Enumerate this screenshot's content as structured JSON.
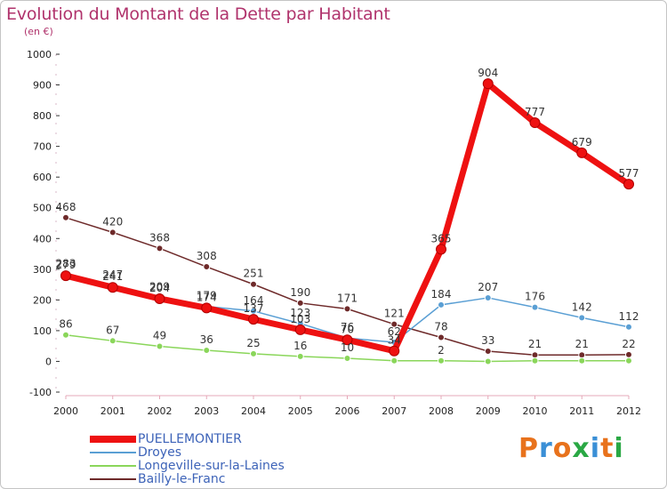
{
  "title": "Evolution du Montant de la Dette par Habitant",
  "subtitle": "(en €)",
  "logo": {
    "text": "Proxiti",
    "colors": [
      "#e8721c",
      "#3a8fd6",
      "#e8721c",
      "#2aa844",
      "#3a8fd6",
      "#e8721c",
      "#2aa844"
    ]
  },
  "chart_data": {
    "type": "line",
    "title": "Evolution du Montant de la Dette par Habitant",
    "subtitle": "(en €)",
    "x": [
      "2000",
      "2001",
      "2002",
      "2003",
      "2004",
      "2005",
      "2006",
      "2007",
      "2008",
      "2009",
      "2010",
      "2011",
      "2012"
    ],
    "ylim": [
      -100,
      1000
    ],
    "yticks": [
      "-100",
      "0",
      "100",
      "200",
      "300",
      "400",
      "500",
      "600",
      "700",
      "800",
      "900",
      "1000"
    ],
    "grid": false,
    "legend_position": "bottom-left",
    "series": [
      {
        "name": "PUELLEMONTIER",
        "color": "#ee1111",
        "values": [
          279,
          241,
          204,
          174,
          137,
          103,
          70,
          34,
          365,
          904,
          777,
          679,
          577
        ],
        "labels": [
          "279",
          "241",
          "204",
          "174",
          "137",
          "103",
          "70",
          "34",
          "365",
          "904",
          "777",
          "679",
          "577"
        ]
      },
      {
        "name": "Droyes",
        "color": "#5a9fd4",
        "values": [
          283,
          247,
          209,
          179,
          164,
          123,
          76,
          62,
          184,
          207,
          176,
          142,
          112
        ],
        "labels": [
          "283",
          "247",
          "209",
          "179",
          "164",
          "123",
          "76",
          "62",
          "184",
          "207",
          "176",
          "142",
          "112"
        ]
      },
      {
        "name": "Longeville-sur-la-Laines",
        "color": "#8ad65a",
        "values": [
          86,
          67,
          49,
          36,
          25,
          16,
          10,
          2,
          2,
          0,
          2,
          2,
          2
        ],
        "labels": [
          "86",
          "67",
          "49",
          "36",
          "25",
          "16",
          "10",
          "",
          "2",
          "",
          "",
          "",
          ""
        ]
      },
      {
        "name": "Bailly-le-Franc",
        "color": "#6e2a2a",
        "values": [
          468,
          420,
          368,
          308,
          251,
          190,
          171,
          121,
          78,
          33,
          21,
          21,
          22
        ],
        "labels": [
          "468",
          "420",
          "368",
          "308",
          "251",
          "190",
          "171",
          "121",
          "78",
          "33",
          "21",
          "21",
          "22"
        ]
      }
    ]
  }
}
